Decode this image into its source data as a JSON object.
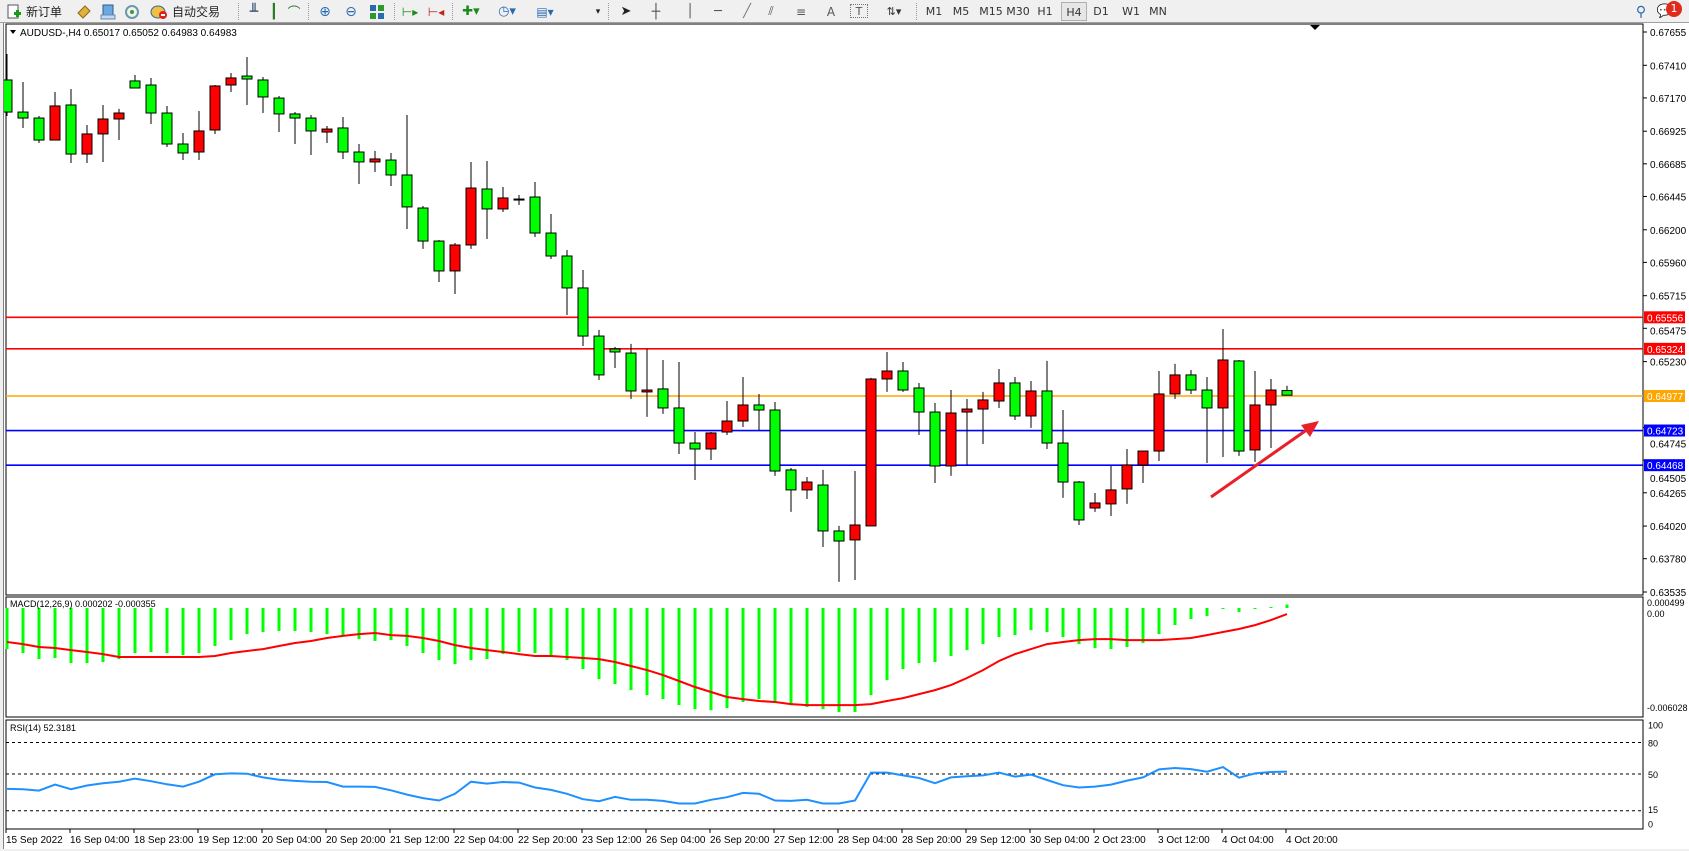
{
  "toolbar": {
    "new_order_label": "新订单",
    "auto_trade_label": "自动交易",
    "timeframes": [
      "M1",
      "M5",
      "M15",
      "M30",
      "H1",
      "H4",
      "D1",
      "W1",
      "MN"
    ],
    "active_timeframe": "H4",
    "notification_count": "1",
    "icons": [
      "new-order-icon",
      "metaeditor-icon",
      "market-watch-icon",
      "signals-icon",
      "auto-trade-icon",
      "bar-chart-icon",
      "candlestick-icon",
      "line-chart-icon",
      "zoom-in-icon",
      "zoom-out-icon",
      "tile-windows-icon",
      "auto-scroll-icon",
      "chart-shift-icon",
      "template-icon",
      "periods-icon",
      "indicators-icon",
      "cursor-icon",
      "crosshair-icon",
      "vertical-line-icon",
      "horizontal-line-icon",
      "trendline-icon",
      "equidistant-channel-icon",
      "fibonacci-icon",
      "text-icon",
      "text-label-icon",
      "arrows-icon",
      "search-icon",
      "chat-icon"
    ]
  },
  "chart": {
    "header": "AUDUSD-,H4  0.65017 0.65052 0.64983 0.64983",
    "colors": {
      "bull": "#ff0000",
      "bear": "#00ff00",
      "outline": "#000000"
    },
    "price_ticks": [
      "0.67655",
      "0.67410",
      "0.67170",
      "0.66925",
      "0.66685",
      "0.66445",
      "0.66200",
      "0.65960",
      "0.65715",
      "0.65475",
      "0.65230",
      "0.64745",
      "0.64505",
      "0.64265",
      "0.64020",
      "0.63780",
      "0.63535"
    ],
    "hlines": [
      {
        "price": "0.65556",
        "color": "#ff0000"
      },
      {
        "price": "0.65324",
        "color": "#ff0000"
      },
      {
        "price": "0.64977",
        "color": "#ffa500"
      },
      {
        "price": "0.64723",
        "color": "#0000ff"
      },
      {
        "price": "0.64468",
        "color": "#0000ff"
      }
    ],
    "annotation_arrow_color": "#e8202a",
    "time_labels": [
      "15 Sep 2022",
      "16 Sep 04:00",
      "18 Sep 23:00",
      "19 Sep 12:00",
      "20 Sep 04:00",
      "20 Sep 20:00",
      "21 Sep 12:00",
      "22 Sep 04:00",
      "22 Sep 20:00",
      "23 Sep 12:00",
      "26 Sep 04:00",
      "26 Sep 20:00",
      "27 Sep 12:00",
      "28 Sep 04:00",
      "28 Sep 20:00",
      "29 Sep 12:00",
      "30 Sep 04:00",
      "2 Oct 23:00",
      "3 Oct 12:00",
      "4 Oct 04:00",
      "4 Oct 20:00"
    ]
  },
  "macd": {
    "label": "MACD(12,26,9) 0.000202 -0.000355",
    "axis_top": "0.000499",
    "axis_zero": "0.00",
    "axis_bottom": "-0.006028",
    "colors": {
      "histogram": "#00ff00",
      "signal": "#ff0000"
    }
  },
  "rsi": {
    "label": "RSI(14) 52.3181",
    "levels": [
      "100",
      "80",
      "50",
      "15",
      "0"
    ],
    "color": "#1e90ff"
  },
  "chart_data": [
    {
      "type": "candlestick",
      "symbol": "AUDUSD-",
      "timeframe": "H4",
      "ylim": [
        0.63535,
        0.67655
      ],
      "ohlc": [
        [
          0.67302,
          0.67493,
          0.67037,
          0.67066
        ],
        [
          0.67066,
          0.67287,
          0.66949,
          0.67022
        ],
        [
          0.67022,
          0.67037,
          0.66838,
          0.6686
        ],
        [
          0.6686,
          0.67214,
          0.6686,
          0.67111
        ],
        [
          0.67118,
          0.67236,
          0.66691,
          0.66757
        ],
        [
          0.66757,
          0.66971,
          0.66691,
          0.66905
        ],
        [
          0.66905,
          0.67118,
          0.66699,
          0.67015
        ],
        [
          0.67015,
          0.67089,
          0.6686,
          0.67059
        ],
        [
          0.67295,
          0.67339,
          0.67243,
          0.67243
        ],
        [
          0.67265,
          0.67317,
          0.66978,
          0.67059
        ],
        [
          0.67059,
          0.67111,
          0.66809,
          0.66831
        ],
        [
          0.66831,
          0.66912,
          0.66713,
          0.66765
        ],
        [
          0.66772,
          0.67074,
          0.66713,
          0.66927
        ],
        [
          0.66934,
          0.67265,
          0.66905,
          0.67258
        ],
        [
          0.67265,
          0.67353,
          0.67214,
          0.67317
        ],
        [
          0.67331,
          0.67471,
          0.67118,
          0.67309
        ],
        [
          0.67302,
          0.67324,
          0.67059,
          0.67177
        ],
        [
          0.67169,
          0.67184,
          0.66919,
          0.67052
        ],
        [
          0.67052,
          0.67066,
          0.66831,
          0.67022
        ],
        [
          0.67022,
          0.67044,
          0.6675,
          0.66927
        ],
        [
          0.66919,
          0.66963,
          0.66838,
          0.66941
        ],
        [
          0.66949,
          0.6703,
          0.66721,
          0.66772
        ],
        [
          0.66772,
          0.66831,
          0.66537,
          0.66699
        ],
        [
          0.66699,
          0.6678,
          0.66625,
          0.66721
        ],
        [
          0.66713,
          0.66765,
          0.66522,
          0.66603
        ],
        [
          0.66603,
          0.67044,
          0.66206,
          0.66368
        ],
        [
          0.6636,
          0.66375,
          0.66059,
          0.66117
        ],
        [
          0.66117,
          0.66125,
          0.65816,
          0.65897
        ],
        [
          0.65897,
          0.66103,
          0.65727,
          0.66088
        ],
        [
          0.66088,
          0.66699,
          0.66059,
          0.66507
        ],
        [
          0.665,
          0.66706,
          0.66132,
          0.66353
        ],
        [
          0.66353,
          0.66515,
          0.66331,
          0.66434
        ],
        [
          0.66426,
          0.66456,
          0.66382,
          0.66426
        ],
        [
          0.66441,
          0.66551,
          0.66147,
          0.66176
        ],
        [
          0.66176,
          0.66316,
          0.65985,
          0.66007
        ],
        [
          0.66007,
          0.66051,
          0.65573,
          0.65772
        ],
        [
          0.65772,
          0.65904,
          0.65345,
          0.65418
        ],
        [
          0.65418,
          0.65463,
          0.65095,
          0.65132
        ],
        [
          0.65323,
          0.65338,
          0.65183,
          0.65301
        ],
        [
          0.65293,
          0.6536,
          0.64955,
          0.65014
        ],
        [
          0.65007,
          0.65323,
          0.64823,
          0.65021
        ],
        [
          0.65029,
          0.65242,
          0.64845,
          0.64889
        ],
        [
          0.64889,
          0.65227,
          0.6455,
          0.64631
        ],
        [
          0.64631,
          0.64712,
          0.64359,
          0.64587
        ],
        [
          0.64587,
          0.64712,
          0.64506,
          0.64705
        ],
        [
          0.64712,
          0.6494,
          0.6469,
          0.64793
        ],
        [
          0.64793,
          0.65117,
          0.64749,
          0.64911
        ],
        [
          0.64911,
          0.64992,
          0.64727,
          0.64874
        ],
        [
          0.64874,
          0.64933,
          0.64389,
          0.64425
        ],
        [
          0.64433,
          0.64447,
          0.64124,
          0.64286
        ],
        [
          0.64286,
          0.64381,
          0.64219,
          0.64344
        ],
        [
          0.64322,
          0.64433,
          0.63866,
          0.63984
        ],
        [
          0.63984,
          0.64021,
          0.63609,
          0.6391
        ],
        [
          0.63918,
          0.64425,
          0.63623,
          0.64028
        ],
        [
          0.64021,
          0.6511,
          0.64021,
          0.65102
        ],
        [
          0.65102,
          0.65301,
          0.65007,
          0.65161
        ],
        [
          0.65161,
          0.65227,
          0.65007,
          0.65021
        ],
        [
          0.65036,
          0.65073,
          0.6469,
          0.64859
        ],
        [
          0.64859,
          0.64926,
          0.64337,
          0.64462
        ],
        [
          0.64462,
          0.65021,
          0.64389,
          0.64852
        ],
        [
          0.64859,
          0.64955,
          0.64469,
          0.64881
        ],
        [
          0.64881,
          0.65007,
          0.64624,
          0.64948
        ],
        [
          0.6494,
          0.65176,
          0.64889,
          0.65073
        ],
        [
          0.65073,
          0.65117,
          0.648,
          0.6483
        ],
        [
          0.6483,
          0.65087,
          0.64742,
          0.65014
        ],
        [
          0.65014,
          0.65235,
          0.64587,
          0.64631
        ],
        [
          0.64631,
          0.64874,
          0.64227,
          0.64344
        ],
        [
          0.64344,
          0.64352,
          0.64028,
          0.64065
        ],
        [
          0.64153,
          0.64263,
          0.64124,
          0.6419
        ],
        [
          0.64183,
          0.64462,
          0.64094,
          0.64286
        ],
        [
          0.64293,
          0.64587,
          0.64183,
          0.64469
        ],
        [
          0.64469,
          0.64572,
          0.64337,
          0.64572
        ],
        [
          0.64572,
          0.65161,
          0.64499,
          0.64992
        ],
        [
          0.64992,
          0.65213,
          0.64955,
          0.65132
        ],
        [
          0.65132,
          0.65168,
          0.64992,
          0.65021
        ],
        [
          0.65021,
          0.65117,
          0.64484,
          0.64889
        ],
        [
          0.64889,
          0.6547,
          0.64528,
          0.65242
        ],
        [
          0.65235,
          0.65242,
          0.64536,
          0.64572
        ],
        [
          0.6458,
          0.65161,
          0.64492,
          0.64911
        ],
        [
          0.64911,
          0.65102,
          0.64594,
          0.65021
        ],
        [
          0.65017,
          0.65052,
          0.64983,
          0.64983
        ]
      ],
      "horizontal_lines": [
        0.65556,
        0.65324,
        0.64977,
        0.64723,
        0.64468
      ]
    },
    {
      "type": "bar",
      "name": "MACD(12,26,9)",
      "ylim": [
        -0.006028,
        0.000499
      ],
      "histogram": [
        -0.00238,
        -0.00261,
        -0.00296,
        -0.0029,
        -0.00319,
        -0.00319,
        -0.00313,
        -0.00296,
        -0.00261,
        -0.00255,
        -0.00261,
        -0.00273,
        -0.00261,
        -0.0022,
        -0.00186,
        -0.00151,
        -0.00139,
        -0.00133,
        -0.00133,
        -0.00139,
        -0.00151,
        -0.00162,
        -0.0018,
        -0.00191,
        -0.00186,
        -0.0022,
        -0.00261,
        -0.00302,
        -0.00325,
        -0.00302,
        -0.00296,
        -0.00267,
        -0.00255,
        -0.00261,
        -0.00278,
        -0.00302,
        -0.00354,
        -0.00412,
        -0.00441,
        -0.00476,
        -0.00505,
        -0.00528,
        -0.00563,
        -0.00586,
        -0.00592,
        -0.0058,
        -0.00545,
        -0.00528,
        -0.00551,
        -0.00563,
        -0.00574,
        -0.00586,
        -0.00603,
        -0.00603,
        -0.00505,
        -0.00418,
        -0.00354,
        -0.00319,
        -0.00313,
        -0.00278,
        -0.00244,
        -0.00209,
        -0.00168,
        -0.00157,
        -0.00128,
        -0.00139,
        -0.00168,
        -0.00209,
        -0.00232,
        -0.00238,
        -0.00226,
        -0.00203,
        -0.00151,
        -0.00099,
        -0.00064,
        -0.00046,
        -2e-05,
        -0.00023,
        -6e-05,
        6e-05,
        0.000202
      ],
      "signal": [
        -0.00197,
        -0.00209,
        -0.00226,
        -0.00232,
        -0.00244,
        -0.00255,
        -0.00267,
        -0.00284,
        -0.00284,
        -0.00284,
        -0.00284,
        -0.00284,
        -0.00284,
        -0.00278,
        -0.00261,
        -0.00249,
        -0.00238,
        -0.0022,
        -0.00203,
        -0.00191,
        -0.00174,
        -0.00162,
        -0.00151,
        -0.00145,
        -0.00157,
        -0.00162,
        -0.00174,
        -0.00191,
        -0.00215,
        -0.00232,
        -0.00244,
        -0.00255,
        -0.00267,
        -0.00278,
        -0.00278,
        -0.00284,
        -0.0029,
        -0.00296,
        -0.00313,
        -0.00336,
        -0.0036,
        -0.00389,
        -0.00423,
        -0.00458,
        -0.00487,
        -0.00516,
        -0.00528,
        -0.00539,
        -0.00545,
        -0.00557,
        -0.00563,
        -0.00563,
        -0.00563,
        -0.00563,
        -0.00557,
        -0.00539,
        -0.00522,
        -0.00499,
        -0.00476,
        -0.00447,
        -0.00406,
        -0.0036,
        -0.00307,
        -0.00267,
        -0.00238,
        -0.00209,
        -0.00197,
        -0.00186,
        -0.0018,
        -0.0018,
        -0.00186,
        -0.00186,
        -0.00186,
        -0.0018,
        -0.00174,
        -0.00157,
        -0.00139,
        -0.00122,
        -0.00099,
        -0.0007,
        -0.000355
      ]
    },
    {
      "type": "line",
      "name": "RSI(14)",
      "ylim": [
        0,
        100
      ],
      "levels": [
        80,
        50,
        15
      ],
      "values": [
        35.8,
        35.5,
        34.2,
        39.9,
        35.5,
        39.0,
        41.2,
        42.7,
        45.6,
        43.1,
        40.2,
        38.0,
        42.7,
        49.7,
        50.6,
        50.3,
        46.8,
        44.6,
        43.4,
        42.7,
        42.4,
        38.0,
        38.0,
        37.7,
        34.5,
        30.4,
        27.0,
        24.8,
        31.1,
        42.7,
        40.9,
        42.4,
        41.8,
        37.1,
        34.9,
        31.1,
        26.0,
        24.1,
        28.2,
        25.4,
        25.4,
        24.4,
        21.9,
        21.9,
        25.4,
        27.9,
        32.0,
        31.1,
        24.8,
        24.4,
        25.4,
        21.9,
        21.9,
        24.8,
        51.3,
        51.3,
        48.7,
        46.2,
        41.2,
        46.8,
        47.8,
        48.7,
        51.3,
        47.5,
        49.4,
        44.3,
        39.3,
        37.1,
        38.0,
        39.9,
        43.7,
        46.8,
        54.4,
        55.7,
        54.7,
        52.2,
        56.6,
        46.5,
        50.6,
        51.9,
        52.3181
      ]
    }
  ]
}
